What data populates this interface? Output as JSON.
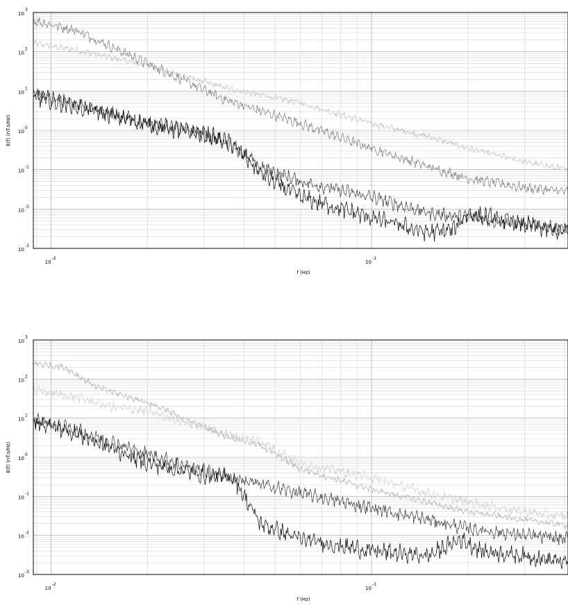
{
  "chart_data": [
    {
      "type": "line",
      "title": "",
      "xlabel": "f (Hz)",
      "ylabel": "E(f)  (nT.s/Hz)",
      "xscale": "log",
      "yscale": "log",
      "xlim": [
        0.0088,
        0.41
      ],
      "ylim": [
        0.001,
        1000
      ],
      "grid": true,
      "x_ticks": [
        {
          "base": "10",
          "exp": "-2"
        },
        {
          "base": "10",
          "exp": "-1"
        }
      ],
      "y_ticks": [
        {
          "base": "10",
          "exp": "3"
        },
        {
          "base": "10",
          "exp": "2"
        },
        {
          "base": "10",
          "exp": "1"
        },
        {
          "base": "10",
          "exp": "0"
        },
        {
          "base": "10",
          "exp": "-1"
        },
        {
          "base": "10",
          "exp": "-2"
        },
        {
          "base": "10",
          "exp": "-3"
        }
      ],
      "series": [
        {
          "color": "#bbbbbb",
          "x": [
            0.009,
            0.012,
            0.02,
            0.035,
            0.06,
            0.1,
            0.15,
            0.2,
            0.3,
            0.41
          ],
          "y": [
            160,
            110,
            45,
            12,
            5,
            1.5,
            0.7,
            0.35,
            0.16,
            0.1
          ]
        },
        {
          "color": "#777777",
          "x": [
            0.009,
            0.012,
            0.02,
            0.035,
            0.06,
            0.1,
            0.15,
            0.2,
            0.3,
            0.41
          ],
          "y": [
            600,
            350,
            50,
            6,
            1.5,
            0.35,
            0.12,
            0.06,
            0.035,
            0.028
          ]
        },
        {
          "color": "#333333",
          "x": [
            0.009,
            0.012,
            0.02,
            0.03,
            0.037,
            0.045,
            0.06,
            0.1,
            0.15,
            0.2,
            0.3,
            0.41
          ],
          "y": [
            8,
            4.5,
            1.6,
            0.8,
            0.4,
            0.12,
            0.05,
            0.02,
            0.008,
            0.006,
            0.004,
            0.003
          ]
        },
        {
          "color": "#000000",
          "x": [
            0.009,
            0.012,
            0.02,
            0.03,
            0.037,
            0.045,
            0.06,
            0.1,
            0.15,
            0.18,
            0.2,
            0.3,
            0.41
          ],
          "y": [
            7,
            4,
            1.4,
            0.8,
            0.45,
            0.08,
            0.02,
            0.006,
            0.0025,
            0.003,
            0.008,
            0.004,
            0.0025
          ]
        }
      ]
    },
    {
      "type": "line",
      "title": "",
      "xlabel": "f (Hz)",
      "ylabel": "E(f)  (nT.s/Hz)",
      "xscale": "log",
      "yscale": "log",
      "xlim": [
        0.0088,
        0.41
      ],
      "ylim": [
        0.001,
        1000
      ],
      "grid": true,
      "x_ticks": [
        {
          "base": "10",
          "exp": "-2"
        },
        {
          "base": "10",
          "exp": "-1"
        }
      ],
      "y_ticks": [
        {
          "base": "10",
          "exp": "3"
        },
        {
          "base": "10",
          "exp": "2"
        },
        {
          "base": "10",
          "exp": "1"
        },
        {
          "base": "10",
          "exp": "0"
        },
        {
          "base": "10",
          "exp": "-1"
        },
        {
          "base": "10",
          "exp": "-2"
        },
        {
          "base": "10",
          "exp": "-3"
        }
      ],
      "series": [
        {
          "color": "#a8a8a8",
          "x": [
            0.009,
            0.011,
            0.014,
            0.02,
            0.035,
            0.045,
            0.06,
            0.1,
            0.15,
            0.2,
            0.3,
            0.41
          ],
          "y": [
            250,
            200,
            60,
            25,
            3.5,
            2,
            0.5,
            0.15,
            0.07,
            0.04,
            0.025,
            0.018
          ]
        },
        {
          "color": "#cccccc",
          "x": [
            0.009,
            0.012,
            0.015,
            0.02,
            0.035,
            0.045,
            0.06,
            0.1,
            0.15,
            0.2,
            0.3,
            0.41
          ],
          "y": [
            50,
            35,
            20,
            15,
            4,
            2.5,
            0.7,
            0.3,
            0.12,
            0.07,
            0.04,
            0.03
          ]
        },
        {
          "color": "#333333",
          "x": [
            0.009,
            0.012,
            0.02,
            0.03,
            0.04,
            0.06,
            0.1,
            0.15,
            0.2,
            0.3,
            0.41
          ],
          "y": [
            9,
            5,
            1.2,
            0.45,
            0.25,
            0.12,
            0.05,
            0.025,
            0.015,
            0.01,
            0.008
          ]
        },
        {
          "color": "#000000",
          "x": [
            0.009,
            0.012,
            0.02,
            0.03,
            0.037,
            0.045,
            0.06,
            0.1,
            0.15,
            0.19,
            0.22,
            0.3,
            0.41
          ],
          "y": [
            8,
            4,
            0.7,
            0.35,
            0.3,
            0.02,
            0.008,
            0.004,
            0.003,
            0.008,
            0.004,
            0.003,
            0.002
          ]
        }
      ]
    }
  ]
}
